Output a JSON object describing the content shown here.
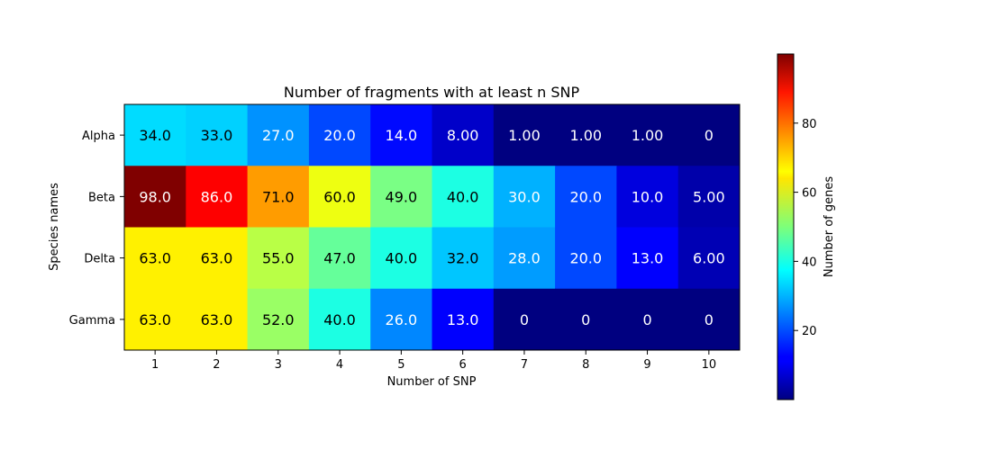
{
  "chart_data": {
    "type": "heatmap",
    "title": "Number of fragments with at least n SNP",
    "xlabel": "Number of SNP",
    "ylabel": "Species names",
    "x_categories": [
      "1",
      "2",
      "3",
      "4",
      "5",
      "6",
      "7",
      "8",
      "9",
      "10"
    ],
    "y_categories": [
      "Alpha",
      "Beta",
      "Delta",
      "Gamma"
    ],
    "values": [
      [
        34,
        33,
        27,
        20,
        14,
        8,
        1,
        1,
        1,
        0
      ],
      [
        98,
        86,
        71,
        60,
        49,
        40,
        30,
        20,
        10,
        5
      ],
      [
        63,
        63,
        55,
        47,
        40,
        32,
        28,
        20,
        13,
        6
      ],
      [
        63,
        63,
        52,
        40,
        26,
        13,
        0,
        0,
        0,
        0
      ]
    ],
    "cell_labels": [
      [
        "34.0",
        "33.0",
        "27.0",
        "20.0",
        "14.0",
        "8.00",
        "1.00",
        "1.00",
        "1.00",
        "0"
      ],
      [
        "98.0",
        "86.0",
        "71.0",
        "60.0",
        "49.0",
        "40.0",
        "30.0",
        "20.0",
        "10.0",
        "5.00"
      ],
      [
        "63.0",
        "63.0",
        "55.0",
        "47.0",
        "40.0",
        "32.0",
        "28.0",
        "20.0",
        "13.0",
        "6.00"
      ],
      [
        "63.0",
        "63.0",
        "52.0",
        "40.0",
        "26.0",
        "13.0",
        "0",
        "0",
        "0",
        "0"
      ]
    ],
    "colormap": "jet",
    "color_range": [
      1,
      98
    ],
    "colorbar": {
      "label": "Number of genes",
      "ticks": [
        20,
        40,
        60,
        80
      ],
      "tick_labels": [
        "20",
        "40",
        "60",
        "80"
      ],
      "range": [
        0,
        100
      ]
    },
    "grid": false
  }
}
